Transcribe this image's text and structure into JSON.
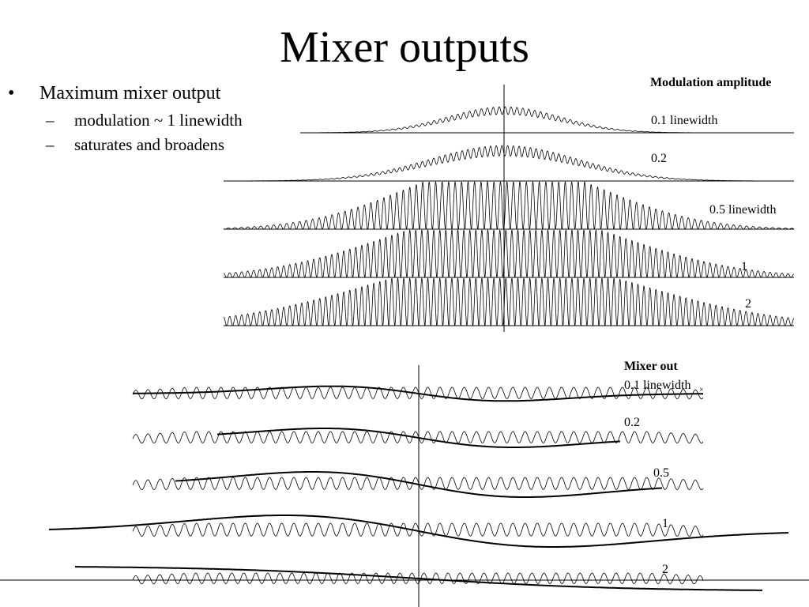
{
  "slide": {
    "title": "Mixer outputs",
    "bullet": "Maximum mixer output",
    "bullet_mark": "•",
    "sub_mark": "–",
    "sub_bullets": [
      "modulation ~ 1 linewidth",
      "saturates and broadens"
    ]
  },
  "upper_panel": {
    "heading": "Modulation amplitude",
    "labels": [
      "0.1 linewidth",
      "0.2",
      "0.5 linewidth",
      "1",
      "2"
    ],
    "relative_amplitude": [
      0.55,
      0.75,
      1.0,
      1.0,
      1.0
    ]
  },
  "lower_panel": {
    "heading": "Mixer out",
    "labels": [
      "0.1 linewidth",
      "0.2",
      "0.5",
      "1",
      "2"
    ],
    "extra_mark": "×"
  },
  "colors": {
    "trace": "#000000",
    "background": "#ffffff"
  }
}
